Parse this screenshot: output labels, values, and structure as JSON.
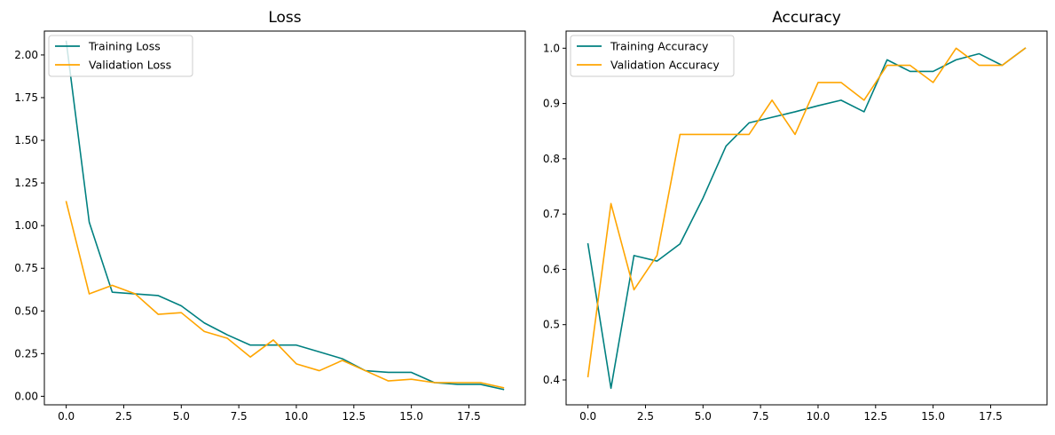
{
  "chart_data": [
    {
      "type": "line",
      "title": "Loss",
      "xlabel": "",
      "ylabel": "",
      "xlim": [
        -0.95,
        19.95
      ],
      "ylim": [
        -0.05,
        2.14
      ],
      "xticks": [
        0,
        2.5,
        5,
        7.5,
        10,
        12.5,
        15,
        17.5
      ],
      "xtick_labels": [
        "0.0",
        "2.5",
        "5.0",
        "7.5",
        "10.0",
        "12.5",
        "15.0",
        "17.5"
      ],
      "yticks": [
        0,
        0.25,
        0.5,
        0.75,
        1.0,
        1.25,
        1.5,
        1.75,
        2.0
      ],
      "ytick_labels": [
        "0.00",
        "0.25",
        "0.50",
        "0.75",
        "1.00",
        "1.25",
        "1.50",
        "1.75",
        "2.00"
      ],
      "legend_position": "top-left",
      "grid": false,
      "x": [
        0,
        1,
        2,
        3,
        4,
        5,
        6,
        7,
        8,
        9,
        10,
        11,
        12,
        13,
        14,
        15,
        16,
        17,
        18,
        19
      ],
      "series": [
        {
          "name": "Training Loss",
          "color": "#008080",
          "values": [
            2.08,
            1.02,
            0.61,
            0.6,
            0.59,
            0.53,
            0.43,
            0.36,
            0.3,
            0.3,
            0.3,
            0.26,
            0.22,
            0.15,
            0.14,
            0.14,
            0.08,
            0.07,
            0.07,
            0.04
          ]
        },
        {
          "name": "Validation Loss",
          "color": "#FFA500",
          "values": [
            1.14,
            0.6,
            0.65,
            0.6,
            0.48,
            0.49,
            0.38,
            0.34,
            0.23,
            0.33,
            0.19,
            0.15,
            0.21,
            0.15,
            0.09,
            0.1,
            0.08,
            0.08,
            0.08,
            0.05
          ]
        }
      ]
    },
    {
      "type": "line",
      "title": "Accuracy",
      "xlabel": "",
      "ylabel": "",
      "xlim": [
        -0.95,
        19.95
      ],
      "ylim": [
        0.355,
        1.031
      ],
      "xticks": [
        0,
        2.5,
        5,
        7.5,
        10,
        12.5,
        15,
        17.5
      ],
      "xtick_labels": [
        "0.0",
        "2.5",
        "5.0",
        "7.5",
        "10.0",
        "12.5",
        "15.0",
        "17.5"
      ],
      "yticks": [
        0.4,
        0.5,
        0.6,
        0.7,
        0.8,
        0.9,
        1.0
      ],
      "ytick_labels": [
        "0.4",
        "0.5",
        "0.6",
        "0.7",
        "0.8",
        "0.9",
        "1.0"
      ],
      "legend_position": "top-left",
      "grid": false,
      "x": [
        0,
        1,
        2,
        3,
        4,
        5,
        6,
        7,
        8,
        9,
        10,
        11,
        12,
        13,
        14,
        15,
        16,
        17,
        18,
        19
      ],
      "series": [
        {
          "name": "Training Accuracy",
          "color": "#008080",
          "values": [
            0.646,
            0.385,
            0.625,
            0.615,
            0.646,
            0.729,
            0.823,
            0.865,
            0.875,
            0.885,
            0.896,
            0.906,
            0.885,
            0.979,
            0.958,
            0.958,
            0.979,
            0.99,
            0.969,
            1.0
          ]
        },
        {
          "name": "Validation Accuracy",
          "color": "#FFA500",
          "values": [
            0.406,
            0.719,
            0.563,
            0.625,
            0.844,
            0.844,
            0.844,
            0.844,
            0.906,
            0.844,
            0.938,
            0.938,
            0.906,
            0.969,
            0.969,
            0.938,
            1.0,
            0.969,
            0.969,
            1.0
          ]
        }
      ]
    }
  ]
}
